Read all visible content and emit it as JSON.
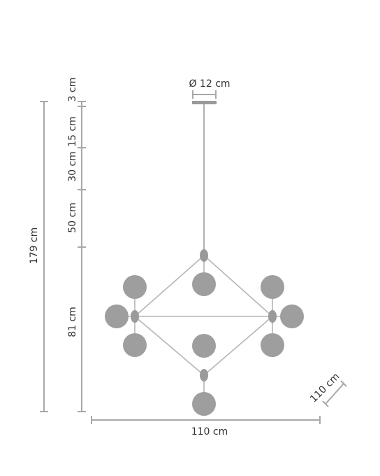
{
  "colors": {
    "line": "#a8a8a8",
    "globe": "#9e9e9e",
    "text": "#333333"
  },
  "labels": {
    "total_height": "179 cm",
    "segment_1": "3 cm",
    "segment_2": "15 cm",
    "segment_3": "30 cm",
    "segment_4": "50 cm",
    "segment_5": "81 cm",
    "canopy_diameter": "Ø 12 cm",
    "width": "110 cm",
    "depth": "110 cm"
  }
}
